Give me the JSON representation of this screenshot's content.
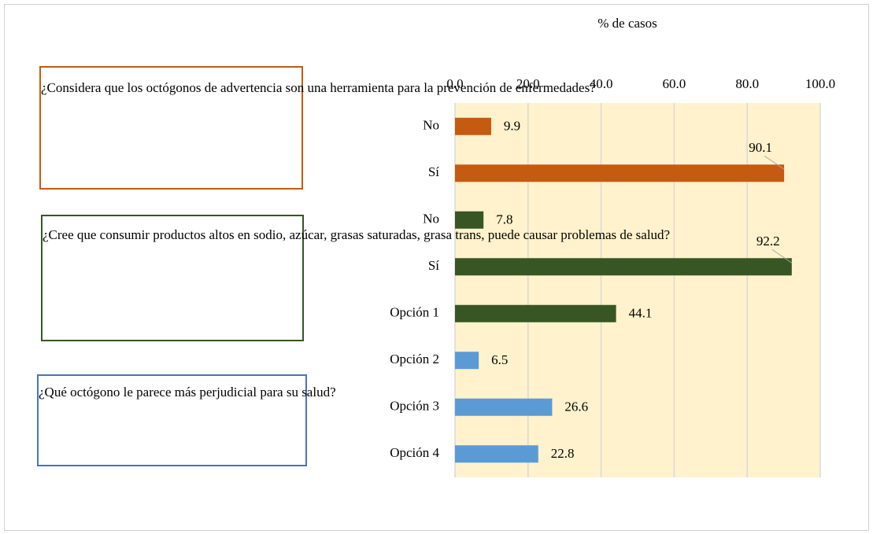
{
  "chart_data": {
    "type": "barh",
    "axis_label": "% de casos",
    "categories": [
      "No",
      "Sí",
      "No",
      "Sí",
      "Opción 1",
      "Opción 2",
      "Opción 3",
      "Opción 4"
    ],
    "values": [
      9.9,
      90.1,
      7.8,
      92.2,
      44.1,
      6.5,
      26.6,
      22.8
    ],
    "colors": [
      "#c55a11",
      "#c55a11",
      "#375623",
      "#375623",
      "#375623",
      "#5b9bd5",
      "#5b9bd5",
      "#5b9bd5"
    ],
    "xlim": [
      0,
      100
    ],
    "xticks": [
      {
        "value": 0,
        "label": "0.0"
      },
      {
        "value": 20,
        "label": "20.0"
      },
      {
        "value": 40,
        "label": "40.0"
      },
      {
        "value": 60,
        "label": "60.0"
      },
      {
        "value": 80,
        "label": "80.0"
      },
      {
        "value": 100,
        "label": "100.0"
      }
    ],
    "grid": true,
    "plot_background": "#fff2cc",
    "annotations": [
      {
        "text": "¿Considera que los octógonos de advertencia son una herramienta para la prevención de enfermedades?",
        "color": "#c55a11"
      },
      {
        "text": "¿Cree que consumir productos altos en sodio, azúcar, grasas saturadas, grasa trans, puede causar problemas de salud?",
        "color": "#375623"
      },
      {
        "text": "¿Qué octógono le parece más perjudicial para su salud?",
        "color": "#4472c4"
      }
    ]
  }
}
